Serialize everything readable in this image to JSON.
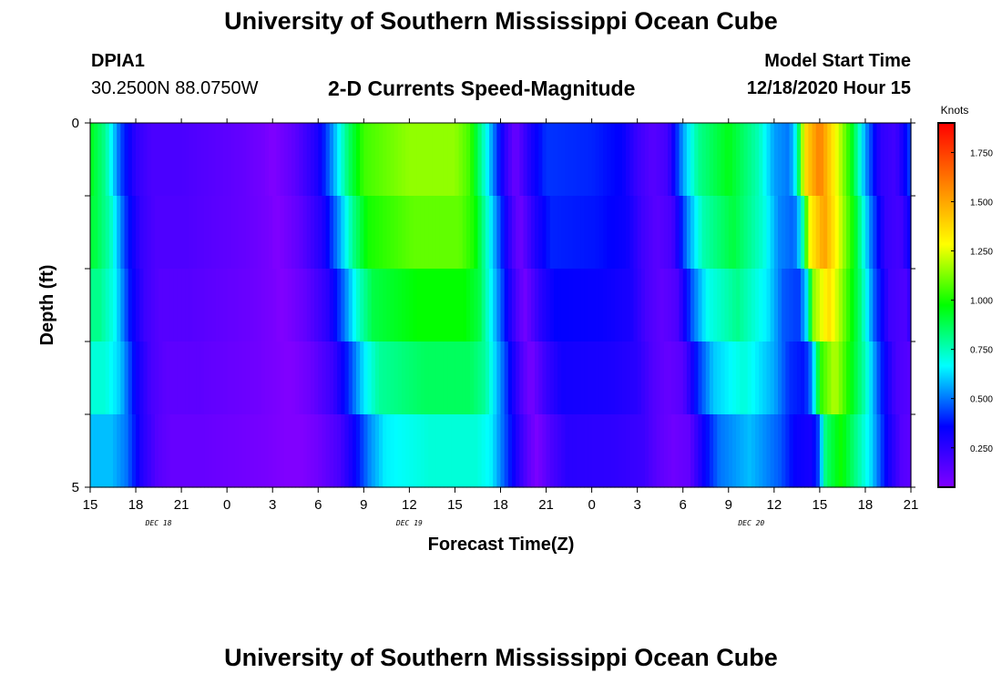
{
  "header": {
    "title": "University of Southern Mississippi Ocean Cube",
    "station_id": "DPIA1",
    "coordinates": "30.2500N 88.0750W",
    "subtitle": "2-D Currents Speed-Magnitude",
    "model_start_label": "Model Start Time",
    "model_start_value": "12/18/2020 Hour 15"
  },
  "footer": {
    "title": "University of Southern Mississippi Ocean Cube"
  },
  "chart_data": {
    "type": "heatmap",
    "title": "2-D Currents Speed-Magnitude",
    "xlabel": "Forecast Time(Z)",
    "ylabel": "Depth (ft)",
    "x_tick_labels": [
      "15",
      "18",
      "21",
      "0",
      "3",
      "6",
      "9",
      "12",
      "15",
      "18",
      "21",
      "0",
      "3",
      "6",
      "9",
      "12",
      "15",
      "18",
      "21"
    ],
    "x_tick_hours": [
      0,
      3,
      6,
      9,
      12,
      15,
      18,
      21,
      24,
      27,
      30,
      33,
      36,
      39,
      42,
      45,
      48,
      51,
      54
    ],
    "date_labels": [
      {
        "text": "DEC 18",
        "hour": 4.5
      },
      {
        "text": "DEC 19",
        "hour": 21
      },
      {
        "text": "DEC 20",
        "hour": 43.5
      }
    ],
    "y_tick_labels": [
      "0",
      "5"
    ],
    "ylim": [
      0,
      5
    ],
    "colorbar": {
      "title": "Knots",
      "tick_labels": [
        "0.250",
        "0.500",
        "0.750",
        "1.000",
        "1.250",
        "1.500",
        "1.750"
      ],
      "tick_values": [
        0.25,
        0.5,
        0.75,
        1.0,
        1.25,
        1.5,
        1.75
      ],
      "range": [
        0.05,
        1.9
      ],
      "stops": [
        "#8000ff",
        "#0000ff",
        "#00ffff",
        "#00ff00",
        "#ffff00",
        "#ff8000",
        "#ff0000"
      ]
    },
    "hours": 54,
    "depth_layers": 5,
    "speed_keyframes_surface": [
      [
        0,
        0.95
      ],
      [
        1,
        0.8
      ],
      [
        2,
        0.45
      ],
      [
        3,
        0.25
      ],
      [
        4,
        0.18
      ],
      [
        6,
        0.18
      ],
      [
        8,
        0.15
      ],
      [
        10,
        0.12
      ],
      [
        11.5,
        0.08
      ],
      [
        12,
        0.05
      ],
      [
        13.5,
        0.14
      ],
      [
        15,
        0.3
      ],
      [
        16,
        0.55
      ],
      [
        17,
        0.85
      ],
      [
        18,
        1.05
      ],
      [
        21,
        1.15
      ],
      [
        24,
        1.15
      ],
      [
        25,
        1.05
      ],
      [
        26,
        0.7
      ],
      [
        27,
        0.35
      ],
      [
        27.5,
        0.2
      ],
      [
        28,
        0.1
      ],
      [
        29,
        0.3
      ],
      [
        30,
        0.42
      ],
      [
        33,
        0.4
      ],
      [
        35,
        0.35
      ],
      [
        36,
        0.22
      ],
      [
        37,
        0.15
      ],
      [
        38,
        0.2
      ],
      [
        39,
        0.55
      ],
      [
        40,
        0.8
      ],
      [
        42,
        0.95
      ],
      [
        44,
        0.75
      ],
      [
        45,
        0.55
      ],
      [
        46,
        0.5
      ],
      [
        46.5,
        0.7
      ],
      [
        47,
        1.35
      ],
      [
        48,
        1.6
      ],
      [
        49,
        1.3
      ],
      [
        50,
        1.0
      ],
      [
        51,
        0.55
      ],
      [
        52,
        0.25
      ],
      [
        53,
        0.2
      ],
      [
        54,
        0.45
      ]
    ],
    "depth_attenuation": [
      1.0,
      0.95,
      0.85,
      0.75,
      0.62
    ],
    "depth_shift_hours": [
      0,
      0.3,
      0.6,
      1.0,
      1.4
    ]
  }
}
